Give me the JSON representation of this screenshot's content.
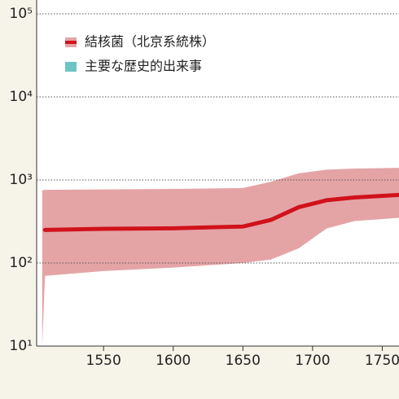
{
  "chart_data": {
    "type": "line",
    "xlim": [
      1502,
      1762
    ],
    "xticks": [
      1550,
      1600,
      1650,
      1700,
      1750
    ],
    "ylim": [
      10,
      100000
    ],
    "log_y": true,
    "grid": true,
    "yticks": [
      {
        "value": 10,
        "label": "10¹"
      },
      {
        "value": 100,
        "label": "10²"
      },
      {
        "value": 1000,
        "label": "10³"
      },
      {
        "value": 10000,
        "label": "10⁴"
      },
      {
        "value": 100000,
        "label": "10⁵"
      }
    ],
    "legend": "upper left",
    "series": [
      {
        "name": "結核菌（北京系統株）",
        "color": "#d0121b",
        "band_color": "#e4a4a6",
        "x": [
          1506,
          1508,
          1550,
          1600,
          1650,
          1670,
          1690,
          1710,
          1730,
          1762
        ],
        "values": [
          null,
          250,
          258,
          262,
          275,
          330,
          470,
          570,
          615,
          660
        ],
        "lower": [
          10,
          70,
          80,
          88,
          100,
          110,
          150,
          260,
          320,
          350
        ],
        "upper": [
          750,
          760,
          770,
          780,
          800,
          950,
          1200,
          1330,
          1370,
          1400
        ]
      },
      {
        "name": "主要な歴史的出来事",
        "color": "#6cc5c4",
        "x": [],
        "values": []
      }
    ]
  }
}
